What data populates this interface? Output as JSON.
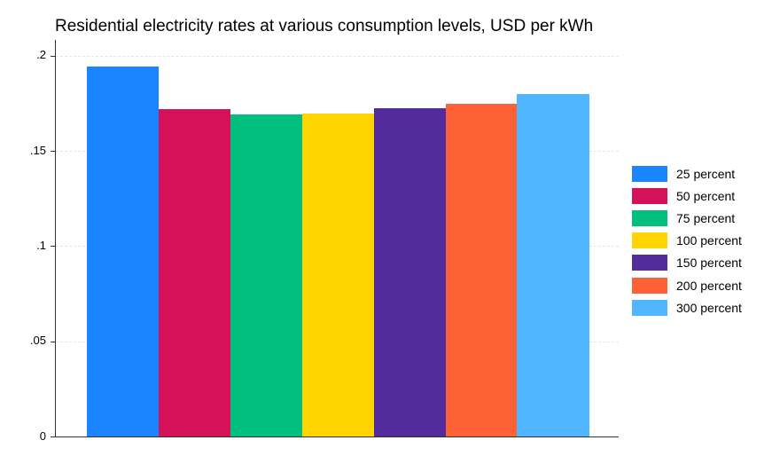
{
  "title": "Residential electricity rates at various consumption levels, USD per kWh",
  "yaxis": {
    "ticks": [
      {
        "label": ".2",
        "value": 0.2
      },
      {
        "label": ".15",
        "value": 0.15
      },
      {
        "label": ".1",
        "value": 0.1
      },
      {
        "label": ".05",
        "value": 0.05
      },
      {
        "label": "0",
        "value": 0
      }
    ]
  },
  "legend": {
    "items": [
      {
        "label": "25 percent",
        "color": "#1a85ff"
      },
      {
        "label": "50 percent",
        "color": "#d41159"
      },
      {
        "label": "75 percent",
        "color": "#00bf7f"
      },
      {
        "label": "100 percent",
        "color": "#ffd400"
      },
      {
        "label": "150 percent",
        "color": "#512c9a"
      },
      {
        "label": "200 percent",
        "color": "#ff6137"
      },
      {
        "label": "300 percent",
        "color": "#4fb6ff"
      }
    ]
  },
  "chart_data": {
    "type": "bar",
    "title": "Residential electricity rates at various consumption levels, USD per kWh",
    "xlabel": "",
    "ylabel": "",
    "ylim": [
      0,
      0.2
    ],
    "grid": true,
    "legend_position": "right",
    "categories": [
      "25 percent",
      "50 percent",
      "75 percent",
      "100 percent",
      "150 percent",
      "200 percent",
      "300 percent"
    ],
    "series": [
      {
        "name": "25 percent",
        "values": [
          0.1945
        ],
        "color": "#1a85ff"
      },
      {
        "name": "50 percent",
        "values": [
          0.172
        ],
        "color": "#d41159"
      },
      {
        "name": "75 percent",
        "values": [
          0.1695
        ],
        "color": "#00bf7f"
      },
      {
        "name": "100 percent",
        "values": [
          0.17
        ],
        "color": "#ffd400"
      },
      {
        "name": "150 percent",
        "values": [
          0.1725
        ],
        "color": "#512c9a"
      },
      {
        "name": "200 percent",
        "values": [
          0.175
        ],
        "color": "#ff6137"
      },
      {
        "name": "300 percent",
        "values": [
          0.18
        ],
        "color": "#4fb6ff"
      }
    ],
    "values": [
      0.1945,
      0.172,
      0.1695,
      0.17,
      0.1725,
      0.175,
      0.18
    ]
  }
}
